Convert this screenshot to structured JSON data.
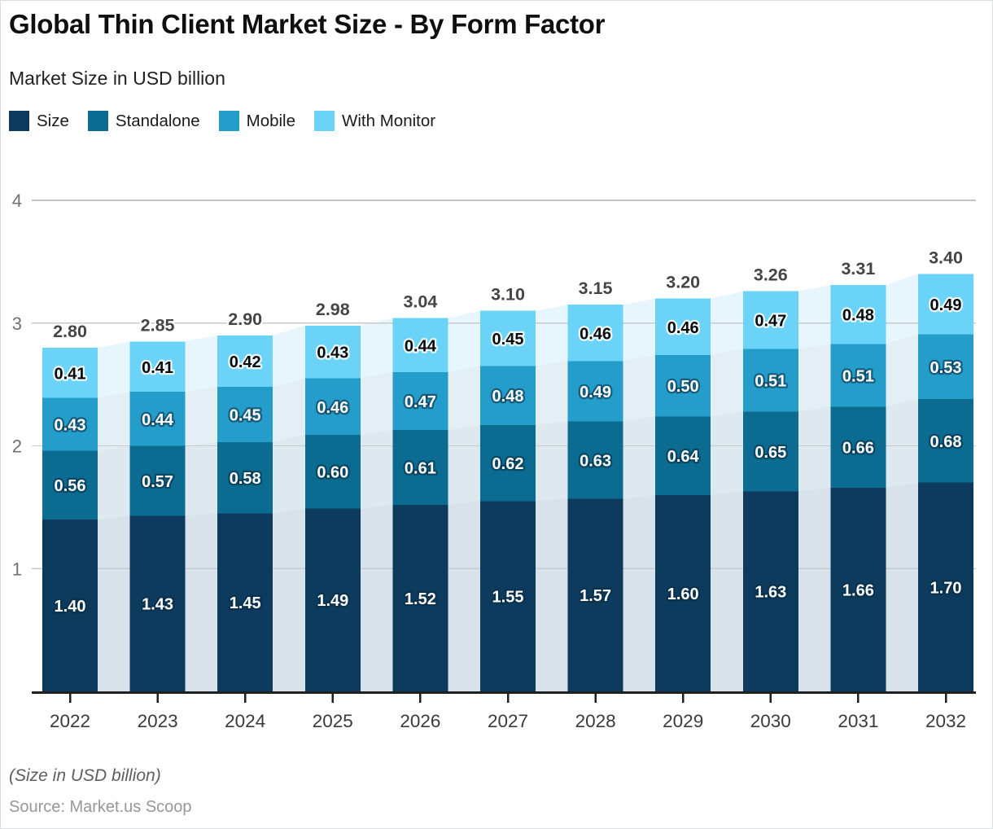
{
  "header": {
    "title": "Global Thin Client Market Size - By Form Factor",
    "subtitle": "Market Size in USD billion"
  },
  "footer": {
    "note": "(Size in USD billion)",
    "source": "Source: Market.us Scoop"
  },
  "chart_data": {
    "type": "bar",
    "stacked": true,
    "title": "Global Thin Client Market Size - By Form Factor",
    "subtitle": "Market Size in USD billion",
    "categories": [
      "2022",
      "2023",
      "2024",
      "2025",
      "2026",
      "2027",
      "2028",
      "2029",
      "2030",
      "2031",
      "2032"
    ],
    "series": [
      {
        "name": "Size",
        "color": "#0d3b5d",
        "area_tint": "#d8e2ea",
        "values": [
          1.4,
          1.43,
          1.45,
          1.49,
          1.52,
          1.55,
          1.57,
          1.6,
          1.63,
          1.66,
          1.7
        ]
      },
      {
        "name": "Standalone",
        "color": "#0b6b91",
        "area_tint": "#dee8ef",
        "values": [
          0.56,
          0.57,
          0.58,
          0.6,
          0.61,
          0.62,
          0.63,
          0.64,
          0.65,
          0.66,
          0.68
        ]
      },
      {
        "name": "Mobile",
        "color": "#259dca",
        "area_tint": "#e3eef5",
        "values": [
          0.43,
          0.44,
          0.45,
          0.46,
          0.47,
          0.48,
          0.49,
          0.5,
          0.51,
          0.51,
          0.53
        ]
      },
      {
        "name": "With Monitor",
        "color": "#6bd3f7",
        "area_tint": "#e7f5fc",
        "values": [
          0.41,
          0.41,
          0.42,
          0.43,
          0.44,
          0.45,
          0.46,
          0.46,
          0.47,
          0.48,
          0.49
        ]
      }
    ],
    "totals": [
      2.8,
      2.85,
      2.9,
      2.98,
      3.04,
      3.1,
      3.15,
      3.2,
      3.26,
      3.31,
      3.4
    ],
    "ylim": [
      0,
      4
    ],
    "yticks": [
      1,
      2,
      3,
      4
    ],
    "grid": "horizontal",
    "legend_position": "top",
    "value_label_decimals": 2,
    "colors": {
      "grid_line": "#c9c9c9",
      "axis_line": "#1f1f1f",
      "y_tick_label": "#717171",
      "x_tick_label": "#3a3a3a",
      "total_label": "#454545",
      "segment_label_light": "#ffffff",
      "segment_label_dark": "#0a0a0a"
    }
  }
}
